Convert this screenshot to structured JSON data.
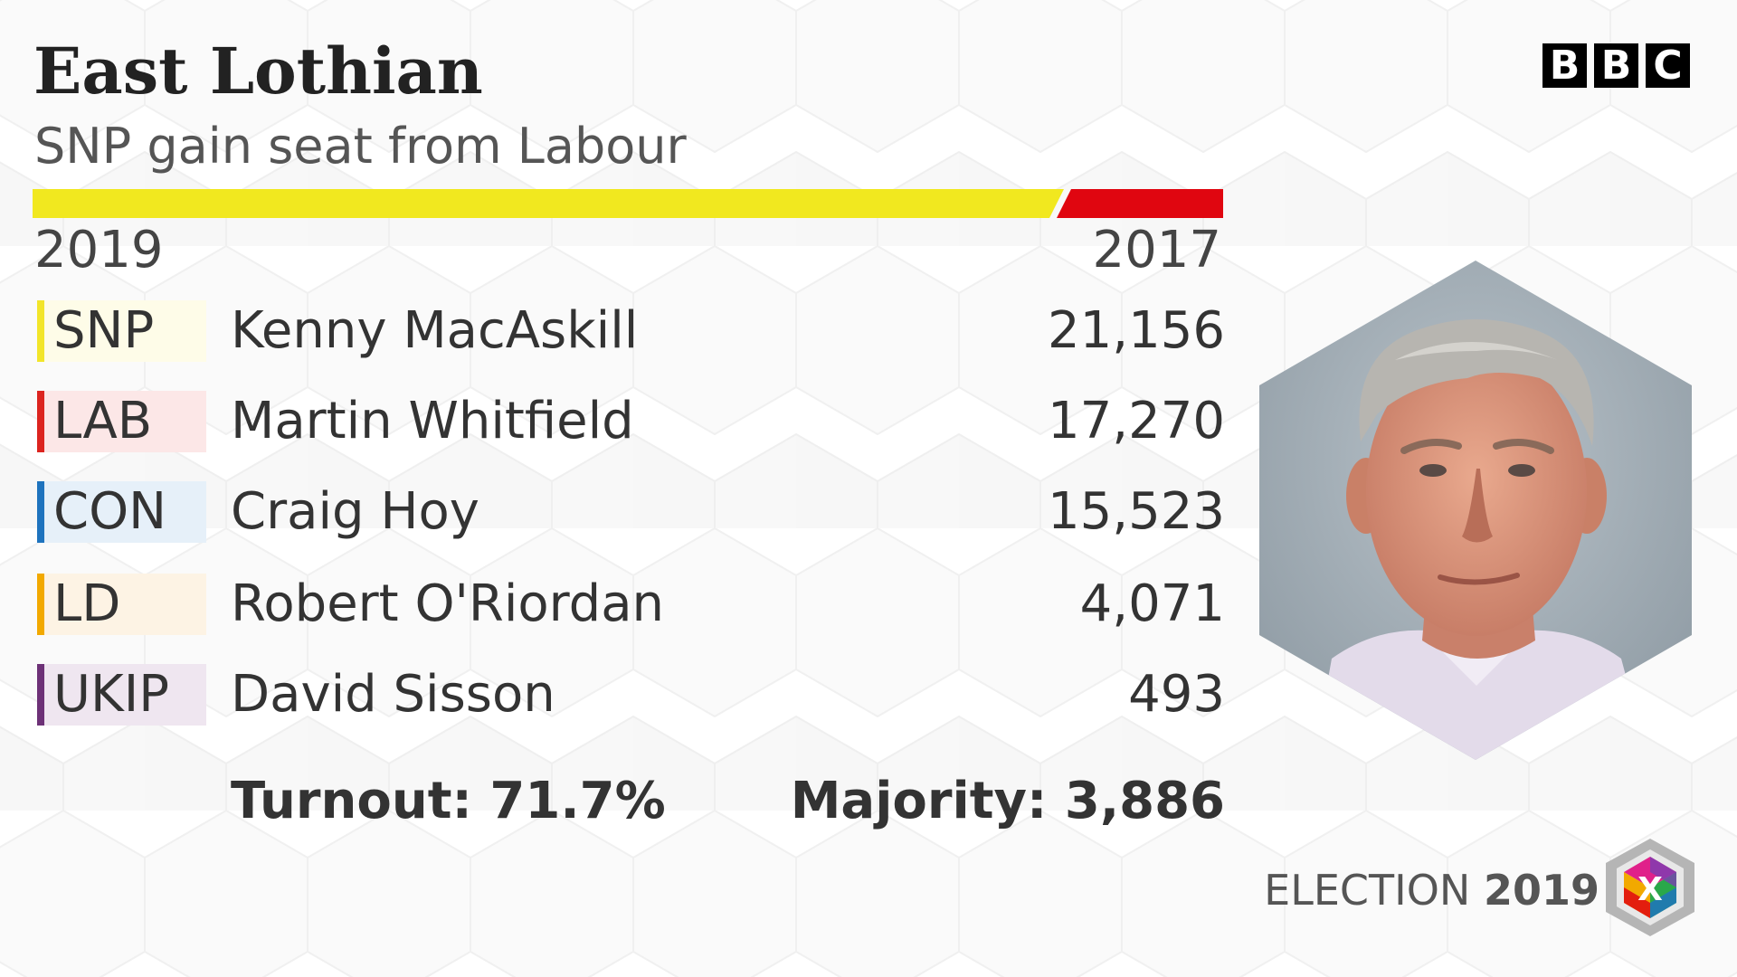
{
  "header": {
    "constituency": "East Lothian",
    "result": "SNP gain seat from Labour"
  },
  "brand": {
    "letters": [
      "B",
      "B",
      "C"
    ]
  },
  "swing_bar": {
    "left_color": "#f1e81f",
    "right_color": "#e00610",
    "left_share": 0.86
  },
  "years": {
    "current": "2019",
    "previous": "2017"
  },
  "results": [
    {
      "party": "SNP",
      "candidate": "Kenny MacAskill",
      "votes": "21,156",
      "color": "#f2e52a",
      "tint": "#fefce8"
    },
    {
      "party": "LAB",
      "candidate": "Martin Whitfield",
      "votes": "17,270",
      "color": "#dc241f",
      "tint": "#fce7e7"
    },
    {
      "party": "CON",
      "candidate": "Craig Hoy",
      "votes": "15,523",
      "color": "#1e73be",
      "tint": "#e6f0f9"
    },
    {
      "party": "LD",
      "candidate": "Robert O'Riordan",
      "votes": "4,071",
      "color": "#f2a900",
      "tint": "#fdf3e4"
    },
    {
      "party": "UKIP",
      "candidate": "David Sisson",
      "votes": "493",
      "color": "#6d3177",
      "tint": "#efe6f0"
    }
  ],
  "summary": {
    "turnout": "Turnout: 71.7%",
    "majority": "Majority: 3,886"
  },
  "footer": {
    "election_label": "ELECTION",
    "election_year": "2019",
    "logo_glyph": "X"
  },
  "icons": {
    "portrait": "candidate-portrait-icon",
    "election_logo": "election-ballot-cube-icon"
  }
}
